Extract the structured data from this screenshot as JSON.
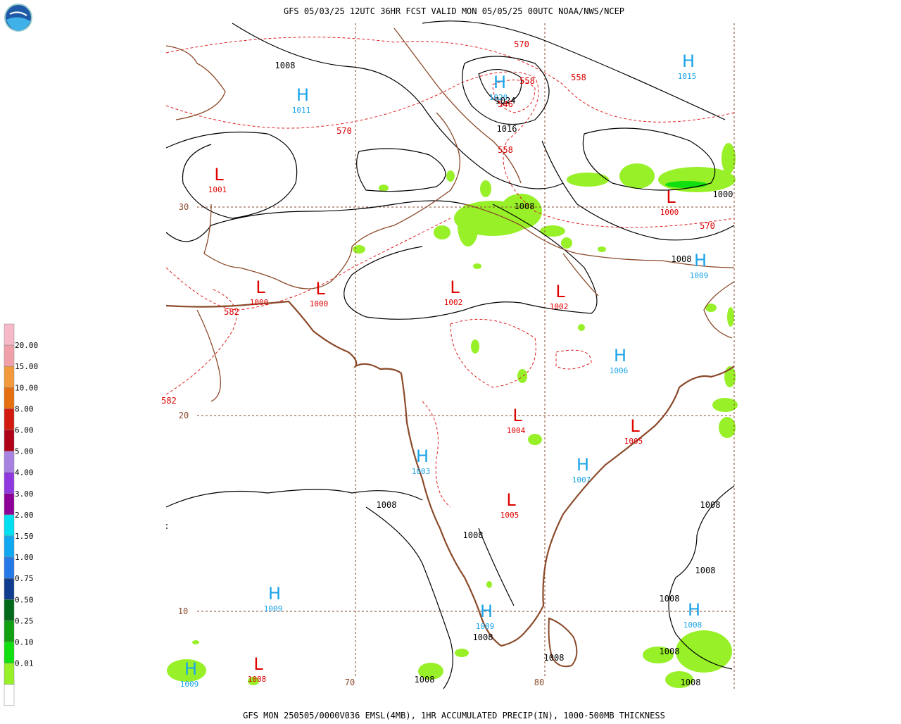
{
  "header": {
    "title": "GFS 05/03/25 12UTC 36HR FCST VALID MON 05/05/25 00UTC NOAA/NWS/NCEP"
  },
  "footer": {
    "caption": "GFS MON 250505/0000V036 EMSL(4MB), 1HR ACCUMULATED PRECIP(IN), 1000-500MB THICKNESS"
  },
  "legend": {
    "labels": [
      "20.00",
      "15.00",
      "10.00",
      "8.00",
      "6.00",
      "5.00",
      "4.00",
      "3.00",
      "2.00",
      "1.50",
      "1.00",
      "0.75",
      "0.50",
      "0.25",
      "0.10",
      "0.01"
    ],
    "colors": [
      "#f7b8c8",
      "#f0a0a8",
      "#f39a3c",
      "#e67010",
      "#d21a10",
      "#b00018",
      "#a882e0",
      "#9038e0",
      "#8c0098",
      "#00e0f0",
      "#10a8f0",
      "#2478e8",
      "#103c90",
      "#006a1a",
      "#10a010",
      "#10e010",
      "#98f028",
      "#ffffff"
    ]
  },
  "centers": [
    {
      "symbol": "H",
      "value": "1011"
    },
    {
      "symbol": "H",
      "value": "1015"
    },
    {
      "symbol": "H",
      "value": "1020"
    },
    {
      "symbol": "L",
      "value": "1001"
    },
    {
      "symbol": "L",
      "value": "1000"
    },
    {
      "symbol": "L",
      "value": "1000"
    },
    {
      "symbol": "L",
      "value": "1002"
    },
    {
      "symbol": "L",
      "value": "1002"
    },
    {
      "symbol": "L",
      "value": "1000"
    },
    {
      "symbol": "H",
      "value": "1009"
    },
    {
      "symbol": "H",
      "value": "1006"
    },
    {
      "symbol": "L",
      "value": "1004"
    },
    {
      "symbol": "L",
      "value": "1005"
    },
    {
      "symbol": "H",
      "value": "1003"
    },
    {
      "symbol": "H",
      "value": "1007"
    },
    {
      "symbol": "L",
      "value": "1005"
    },
    {
      "symbol": "H",
      "value": "1009"
    },
    {
      "symbol": "H",
      "value": "1009"
    },
    {
      "symbol": "H",
      "value": "1008"
    },
    {
      "symbol": "H",
      "value": "1009"
    },
    {
      "symbol": "L",
      "value": "1008"
    }
  ],
  "isobar_labels": [
    "1008",
    "1024",
    "1016",
    "1008",
    "1000",
    "1008",
    "1008",
    "1008",
    "1008",
    "1008",
    "1008",
    "1008",
    "1008",
    "1008",
    "1008",
    "1008"
  ],
  "thickness_labels": [
    "570",
    "558",
    "558",
    "546",
    "570",
    "558",
    "570",
    "582",
    "582"
  ],
  "grid_labels": [
    "30",
    "20",
    "10",
    "70",
    "80"
  ]
}
